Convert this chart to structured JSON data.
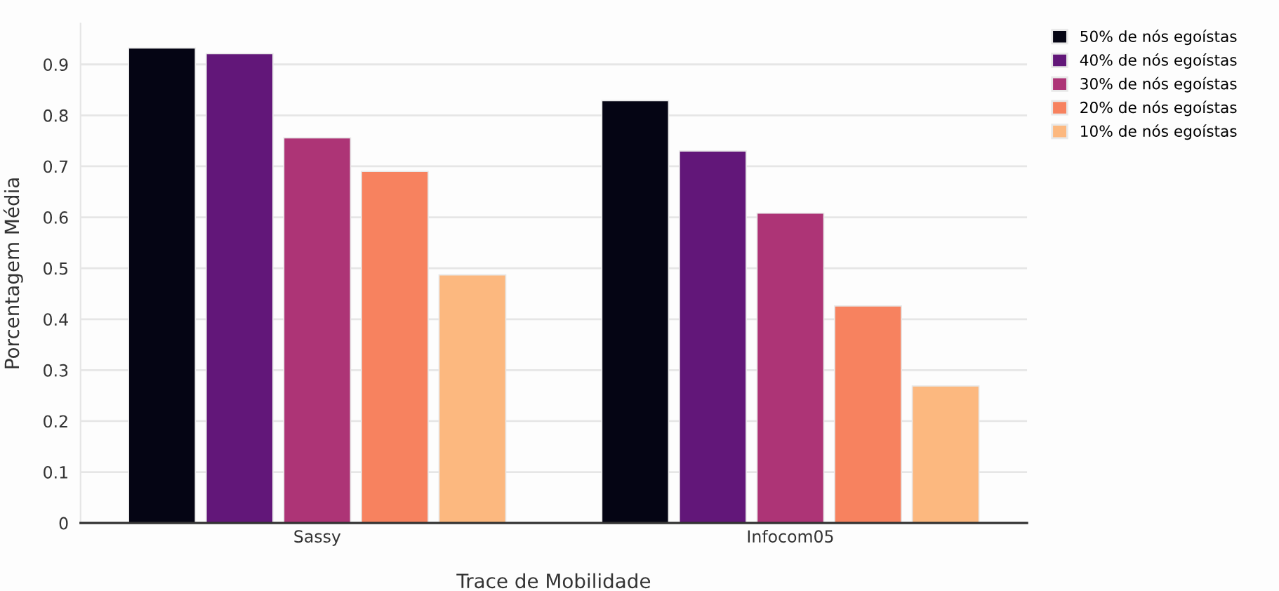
{
  "chart_data": {
    "type": "bar",
    "xlabel": "Trace de Mobilidade",
    "ylabel": "Porcentagem Média",
    "categories": [
      "Sassy",
      "Infocom05"
    ],
    "series": [
      {
        "name": "50% de nós egoístas",
        "color": "#050514",
        "values": [
          0.932,
          0.829
        ]
      },
      {
        "name": "40% de nós egoístas",
        "color": "#621779",
        "values": [
          0.921,
          0.73
        ]
      },
      {
        "name": "30% de nós egoístas",
        "color": "#ad3476",
        "values": [
          0.756,
          0.608
        ]
      },
      {
        "name": "20% de nós egoístas",
        "color": "#f7825f",
        "values": [
          0.69,
          0.426
        ]
      },
      {
        "name": "10% de nós egoístas",
        "color": "#fcb87f",
        "values": [
          0.487,
          0.269
        ]
      }
    ],
    "ylim": [
      0,
      0.98
    ],
    "yticks": [
      0,
      0.1,
      0.2,
      0.3,
      0.4,
      0.5,
      0.6,
      0.7,
      0.8,
      0.9
    ],
    "grid": "y",
    "legend": "top right"
  }
}
